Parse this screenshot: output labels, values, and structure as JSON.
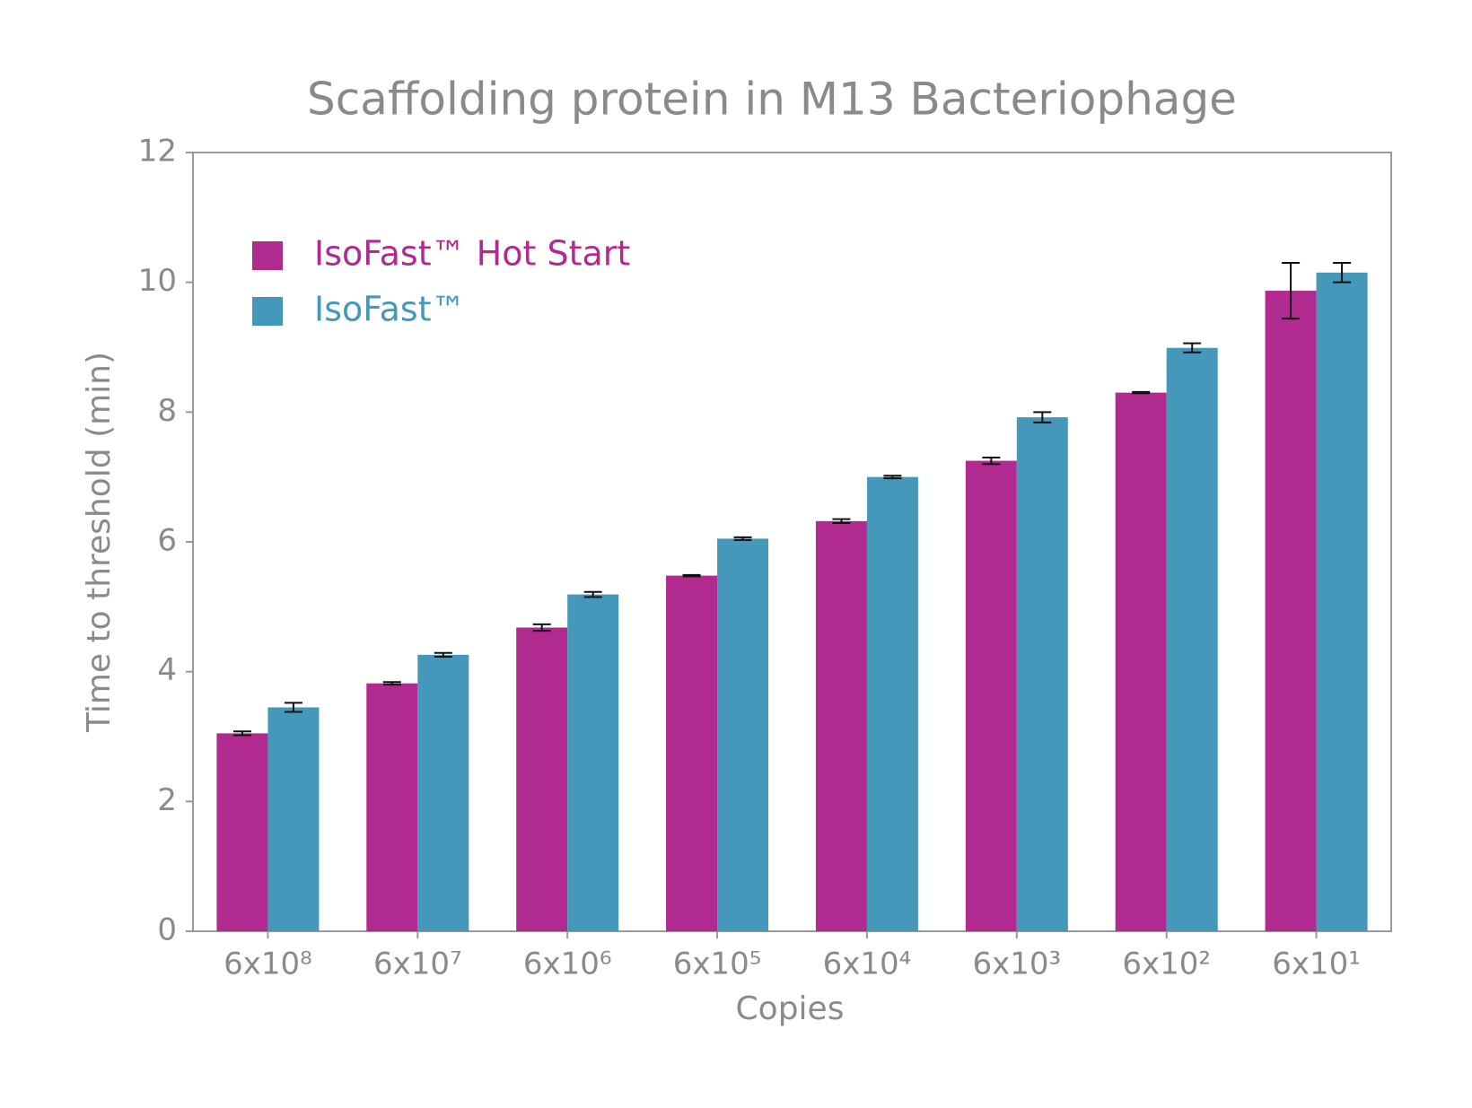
{
  "chart_data": {
    "type": "bar",
    "title": "Scaffolding protein in M13 Bacteriophage",
    "x_label": "Copies",
    "y_label": "Time to threshold (min)",
    "categories": [
      "6x10⁸",
      "6x10⁷",
      "6x10⁶",
      "6x10⁵",
      "6x10⁴",
      "6x10³",
      "6x10²",
      "6x10¹"
    ],
    "series": [
      {
        "name": "IsoFast™ Hot Start",
        "color": "#b12a8f",
        "values": [
          3.05,
          3.82,
          4.68,
          5.48,
          6.32,
          7.25,
          8.3,
          9.87
        ],
        "errors": [
          0.03,
          0.02,
          0.05,
          0.01,
          0.03,
          0.05,
          0.01,
          0.43
        ]
      },
      {
        "name": "IsoFast™",
        "color": "#4598ba",
        "values": [
          3.45,
          4.26,
          5.19,
          6.05,
          7.0,
          7.92,
          8.99,
          10.15
        ],
        "errors": [
          0.07,
          0.03,
          0.04,
          0.02,
          0.02,
          0.08,
          0.07,
          0.15
        ]
      }
    ],
    "ylim": [
      0,
      12
    ],
    "yticks": [
      0,
      2,
      4,
      6,
      8,
      10,
      12
    ],
    "legend": "upper-left",
    "grid": false
  }
}
